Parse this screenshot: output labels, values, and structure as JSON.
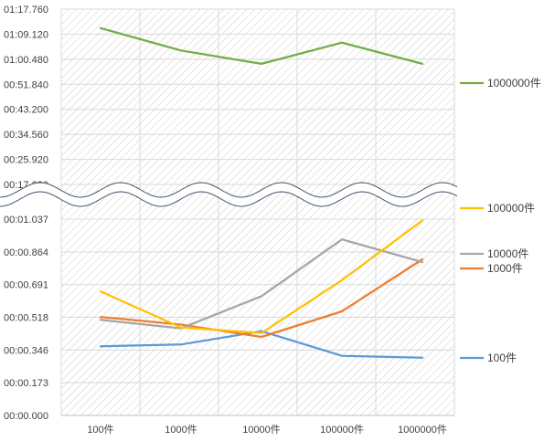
{
  "chart_data": {
    "type": "line",
    "broken_axis": true,
    "categories": [
      "100件",
      "1000件",
      "10000件",
      "100000件",
      "1000000件"
    ],
    "y_ticks_lower": [
      "00:00.000",
      "00:00.173",
      "00:00.346",
      "00:00.518",
      "00:00.691",
      "00:00.864",
      "00:01.037"
    ],
    "y_ticks_upper": [
      "00:17.280",
      "00:25.920",
      "00:34.560",
      "00:43.200",
      "00:51.840",
      "01:00.480",
      "01:09.120",
      "01:17.760"
    ],
    "lower_segment_seconds": [
      0,
      1.037
    ],
    "upper_segment_seconds": [
      17.28,
      77.76
    ],
    "series": [
      {
        "name": "1000000件",
        "color": "#70ad47",
        "segment": "upper",
        "values_seconds": [
          71.2,
          63.5,
          58.9,
          66.2,
          58.9
        ]
      },
      {
        "name": "100000件",
        "color": "#ffc000",
        "segment": "lower",
        "values_seconds": [
          0.655,
          0.465,
          0.435,
          0.715,
          1.03
        ]
      },
      {
        "name": "10000件",
        "color": "#a5a5a5",
        "segment": "lower",
        "values_seconds": [
          0.505,
          0.46,
          0.63,
          0.93,
          0.81
        ]
      },
      {
        "name": "1000件",
        "color": "#ed7d31",
        "segment": "lower",
        "values_seconds": [
          0.52,
          0.48,
          0.415,
          0.55,
          0.825
        ]
      },
      {
        "name": "100件",
        "color": "#5b9bd5",
        "segment": "lower",
        "values_seconds": [
          0.365,
          0.375,
          0.445,
          0.315,
          0.305
        ]
      }
    ],
    "legend_placement": "right"
  }
}
